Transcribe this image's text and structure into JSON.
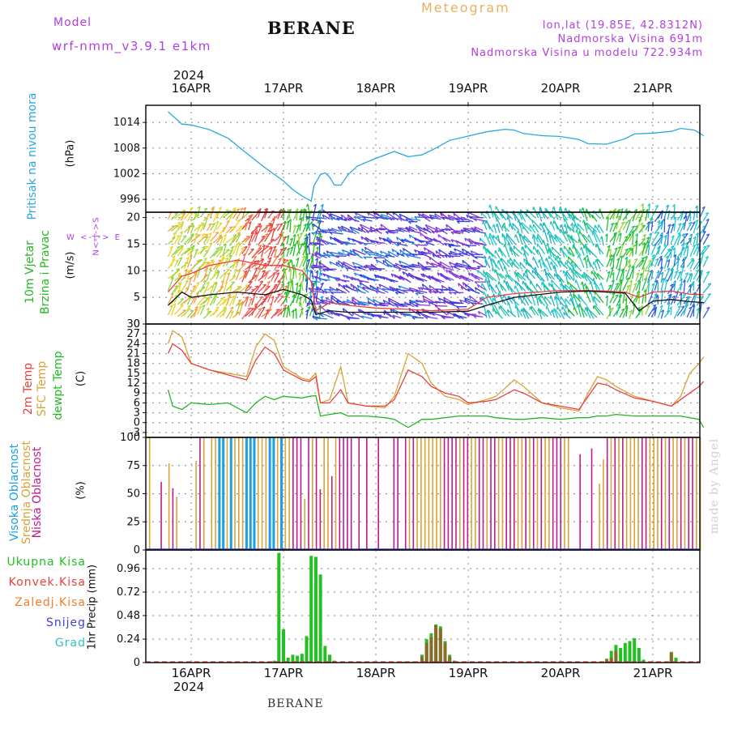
{
  "header": {
    "model_label": "Model",
    "model_name": "wrf-nmm_v3.9.1 e1km",
    "station": "BERANE",
    "meteogram": "Meteogram",
    "lonlat": "lon,lat (19.85E, 42.8312N)",
    "elevation": "Nadmorska Visina 691m",
    "model_elevation": "Nadmorska Visina u modelu 722.934m",
    "year_top": "2024",
    "year_bottom": "2024",
    "footer": "BERANE",
    "credit": "made by Angel"
  },
  "colors": {
    "pressure": "#29a8e0",
    "temp2m": "#e8413c",
    "sfc": "#d9a335",
    "dew": "#22b822",
    "high_cloud": "#1aa0e0",
    "mid_cloud": "#d9a335",
    "low_cloud": "#c0198f",
    "total_precip": "#22c022",
    "convective": "#e8413c",
    "freezing": "#f07f2a",
    "snow": "#4040e0",
    "hail": "#30c0c0",
    "wind_dir_label": "#b040e0"
  },
  "labels": {
    "p1": [
      "Pritisak na nivou mora",
      "(hPa)"
    ],
    "p2": [
      "10m Vjetar",
      "Brzina i Pravac",
      "(m/s)"
    ],
    "p2_dirs": [
      "W",
      "<",
      "-",
      "|",
      "-",
      ">",
      "E"
    ],
    "p2_ns": [
      "N",
      "<",
      "-",
      "|",
      "-",
      ">",
      "S"
    ],
    "p3": [
      "2m Temp",
      "SFC Temp",
      "dewpt Temp",
      "(C)"
    ],
    "p4": [
      "Visoka Oblacnost",
      "Srednja Oblacnost",
      "Niska Oblacnost",
      "(%)"
    ],
    "p5": [
      "Ukupna Kisa",
      "Konvek.Kisa",
      "Zaledj.Kisa",
      "Snijeg",
      "Grad"
    ],
    "p5_axis": "1hr Precip (mm)"
  },
  "chart_data": [
    {
      "type": "line",
      "panel": "pressure",
      "ylabel": "(hPa)",
      "ylim": [
        993,
        1018
      ],
      "y_ticks": [
        "996",
        "1002",
        "1008",
        "1014"
      ],
      "x_ticks": [
        "16APR",
        "17APR",
        "18APR",
        "19APR",
        "20APR",
        "21APR"
      ],
      "x": [
        -0.25,
        -0.1,
        0,
        0.2,
        0.4,
        0.6,
        0.8,
        1.0,
        1.1,
        1.2,
        1.3,
        1.33,
        1.4,
        1.45,
        1.5,
        1.55,
        1.62,
        1.7,
        1.8,
        2.0,
        2.2,
        2.35,
        2.5,
        2.65,
        2.8,
        3.0,
        3.2,
        3.4,
        3.5,
        3.6,
        3.8,
        4.0,
        4.2,
        4.3,
        4.5,
        4.7,
        4.8,
        5.0,
        5.2,
        5.3,
        5.45,
        5.55
      ],
      "series": [
        {
          "values": [
            1016.5,
            1013.6,
            1013.4,
            1012.3,
            1010.3,
            1006.8,
            1003.4,
            1000.3,
            998.3,
            996.8,
            995.6,
            999.2,
            1001.8,
            1002.2,
            1001.2,
            999.4,
            999.3,
            1001.8,
            1003.8,
            1005.6,
            1007.2,
            1006.0,
            1006.4,
            1008.0,
            1009.8,
            1010.8,
            1011.8,
            1012.4,
            1012.2,
            1011.4,
            1010.9,
            1010.7,
            1010.0,
            1009.0,
            1008.9,
            1010.2,
            1011.3,
            1011.5,
            1011.9,
            1012.6,
            1012.2,
            1010.9
          ]
        }
      ]
    },
    {
      "type": "line",
      "panel": "wind",
      "ylabel": "(m/s)",
      "ylim": [
        0,
        21
      ],
      "y_ticks": [
        "0",
        "5",
        "10",
        "15",
        "20"
      ],
      "x": [
        -0.25,
        -0.1,
        0,
        0.2,
        0.5,
        0.8,
        1.0,
        1.2,
        1.3,
        1.35,
        1.5,
        1.7,
        2.0,
        2.3,
        2.6,
        3.0,
        3.2,
        3.5,
        4.0,
        4.3,
        4.5,
        4.7,
        4.85,
        5.0,
        5.2,
        5.4,
        5.55
      ],
      "series": [
        {
          "values": [
            3.5,
            6,
            5,
            5.5,
            6,
            5.5,
            6.5,
            5.5,
            4.5,
            1.8,
            2.5,
            2.2,
            2.2,
            2.2,
            2.2,
            2.4,
            3.5,
            5.0,
            6.0,
            6.2,
            6.0,
            5.8,
            2.5,
            4.3,
            4.6,
            4.2,
            4.0
          ]
        },
        {
          "values": [
            6,
            9,
            9.5,
            11,
            12,
            11,
            11,
            10,
            8,
            2.5,
            4,
            3.5,
            3,
            2.8,
            2.5,
            2.8,
            5.0,
            5.7,
            6.3,
            6.3,
            6.2,
            6.0,
            5.0,
            6.0,
            6.2,
            5.6,
            5.5
          ]
        }
      ]
    },
    {
      "type": "line",
      "panel": "temperature",
      "ylabel": "(C)",
      "ylim": [
        -4.5,
        30
      ],
      "y_ticks": [
        "-3",
        "0",
        "3",
        "6",
        "9",
        "12",
        "15",
        "18",
        "21",
        "24",
        "27",
        "30"
      ],
      "x": [
        -0.25,
        -0.2,
        -0.1,
        0,
        0.2,
        0.4,
        0.6,
        0.7,
        0.8,
        0.9,
        1.0,
        1.2,
        1.28,
        1.35,
        1.4,
        1.5,
        1.62,
        1.7,
        1.9,
        2.1,
        2.2,
        2.35,
        2.5,
        2.6,
        2.75,
        2.9,
        3.0,
        3.2,
        3.3,
        3.5,
        3.6,
        3.8,
        4.0,
        4.2,
        4.3,
        4.4,
        4.5,
        4.6,
        4.8,
        5.0,
        5.2,
        5.3,
        5.4,
        5.5,
        5.55
      ],
      "series": [
        {
          "name": "2m Temp",
          "values": [
            21,
            24,
            22,
            18,
            16,
            14.5,
            13,
            19,
            23,
            21,
            16,
            13,
            12.5,
            14,
            6,
            6,
            10,
            6,
            5,
            5,
            7,
            16,
            14,
            11,
            9,
            8,
            6,
            6.5,
            7,
            10,
            9,
            6,
            5,
            4,
            8,
            12,
            11.5,
            10,
            7.5,
            6.5,
            5,
            7,
            9,
            11,
            12.5
          ]
        },
        {
          "name": "SFC Temp",
          "values": [
            24,
            28,
            26,
            18,
            16,
            15,
            14,
            23,
            27,
            25,
            17,
            13.5,
            13,
            15,
            6,
            7,
            17,
            6,
            5,
            4.5,
            8,
            21,
            18,
            12,
            8,
            7,
            5.5,
            7,
            8,
            13,
            11,
            6,
            4.5,
            3.5,
            9,
            14,
            13,
            11,
            8,
            6.5,
            5,
            8,
            15,
            18,
            20
          ]
        },
        {
          "name": "dewpt Temp",
          "values": [
            10,
            5,
            4,
            6,
            5.5,
            6,
            3,
            6,
            8,
            7,
            8,
            7.5,
            8,
            8.2,
            2,
            2.5,
            3,
            2,
            2,
            1.5,
            1,
            -1.5,
            1,
            1,
            1.5,
            2,
            2,
            2,
            1.5,
            1,
            1,
            1.5,
            1,
            1.5,
            1.5,
            2,
            2,
            2.5,
            2,
            2,
            2,
            2,
            1.5,
            1,
            -1.5
          ]
        }
      ]
    },
    {
      "type": "bar",
      "panel": "cloud",
      "ylabel": "(%)",
      "ylim": [
        0,
        100
      ],
      "y_ticks": [
        "0",
        "25",
        "50",
        "75",
        "100"
      ],
      "series": [
        {
          "name": "Visoka Oblacnost",
          "values": [
            100
          ]
        },
        {
          "name": "Srednja Oblacnost",
          "values": [
            100
          ]
        },
        {
          "name": "Niska Oblacnost",
          "values": [
            100
          ]
        }
      ]
    },
    {
      "type": "bar",
      "panel": "precipitation",
      "ylabel": "1hr Precip (mm)",
      "ylim": [
        0,
        1.15
      ],
      "y_ticks": [
        "0",
        "0.24",
        "0.48",
        "0.72",
        "0.96"
      ],
      "x": [
        0.9,
        0.95,
        1.0,
        1.05,
        1.1,
        1.15,
        1.2,
        1.25,
        1.3,
        1.35,
        1.4,
        1.45,
        1.5,
        1.55,
        2.3,
        2.4,
        2.5,
        2.55,
        2.6,
        2.65,
        2.7,
        2.75,
        2.8,
        2.85,
        4.5,
        4.55,
        4.6,
        4.65,
        4.7,
        4.75,
        4.8,
        4.85,
        4.9,
        5.2,
        5.25
      ],
      "series": [
        {
          "name": "Ukupna Kisa",
          "values": [
            0.02,
            1.12,
            0.34,
            0.05,
            0.08,
            0.07,
            0.09,
            0.27,
            1.09,
            1.08,
            0.9,
            0.17,
            0.08,
            0.02,
            0.01,
            0.01,
            0.08,
            0.24,
            0.3,
            0.39,
            0.37,
            0.22,
            0.08,
            0.02,
            0.04,
            0.12,
            0.18,
            0.15,
            0.2,
            0.22,
            0.25,
            0.15,
            0.03,
            0.11,
            0.05
          ]
        },
        {
          "name": "Konvek.Kisa",
          "values": [
            0,
            0,
            0,
            0,
            0,
            0,
            0,
            0,
            0,
            0,
            0,
            0,
            0,
            0,
            0,
            0,
            0.06,
            0.2,
            0.26,
            0.38,
            0.35,
            0.2,
            0.06,
            0,
            0.03,
            0.05,
            0.12,
            0,
            0,
            0,
            0,
            0,
            0,
            0.1,
            0
          ]
        }
      ]
    }
  ]
}
